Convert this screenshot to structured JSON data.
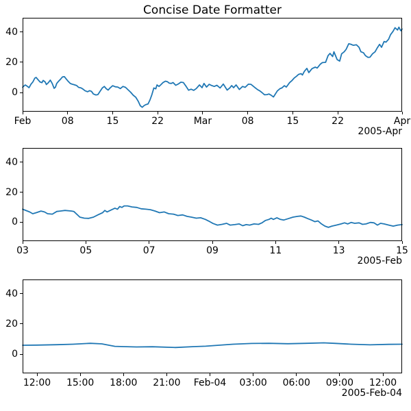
{
  "title": "Concise Date Formatter",
  "colors": {
    "line": "#1f77b4",
    "axes": "#000000",
    "text": "#000000",
    "background": "#ffffff"
  },
  "chart_data": [
    {
      "type": "line",
      "title": "",
      "xlabel": "",
      "ylabel": "",
      "x_unit": "days since 2005-02-01",
      "x_range": [
        0,
        59
      ],
      "ylim": [
        -12.7,
        49.5
      ],
      "grid": false,
      "legend": "none",
      "offset_label": "2005-Apr",
      "xticks": [
        {
          "pos": 0,
          "label": "Feb"
        },
        {
          "pos": 7,
          "label": "08"
        },
        {
          "pos": 14,
          "label": "15"
        },
        {
          "pos": 21,
          "label": "22"
        },
        {
          "pos": 28,
          "label": "Mar"
        },
        {
          "pos": 35,
          "label": "08"
        },
        {
          "pos": 42,
          "label": "15"
        },
        {
          "pos": 49,
          "label": "22"
        },
        {
          "pos": 59,
          "label": "Apr"
        }
      ],
      "yticks": [
        {
          "pos": 0,
          "label": "0"
        },
        {
          "pos": 20,
          "label": "20"
        },
        {
          "pos": 40,
          "label": "40"
        }
      ],
      "x": [
        0,
        0.4,
        0.7,
        1.0,
        1.3,
        1.6,
        1.9,
        2.1,
        2.4,
        2.7,
        3.0,
        3.2,
        3.5,
        3.7,
        4.0,
        4.3,
        4.6,
        4.9,
        5.1,
        5.3,
        5.6,
        5.9,
        6.2,
        6.5,
        6.8,
        7.1,
        7.4,
        7.7,
        8.0,
        8.4,
        8.7,
        9.1,
        9.4,
        9.7,
        10.1,
        10.4,
        10.7,
        11.0,
        11.4,
        11.7,
        12.0,
        12.4,
        12.7,
        13.0,
        13.3,
        13.6,
        14.0,
        14.4,
        14.8,
        15.2,
        15.6,
        16.0,
        16.4,
        16.8,
        17.2,
        17.6,
        18.0,
        18.3,
        18.6,
        18.9,
        19.2,
        19.5,
        19.8,
        20.1,
        20.4,
        20.7,
        20.9,
        21.2,
        21.5,
        21.8,
        22.2,
        22.5,
        22.8,
        23.1,
        23.4,
        23.8,
        24.2,
        24.6,
        25.0,
        25.4,
        25.8,
        26.2,
        26.6,
        27.0,
        27.5,
        27.9,
        28.2,
        28.6,
        29.0,
        29.4,
        29.8,
        30.2,
        30.7,
        31.2,
        31.8,
        32.2,
        32.5,
        32.8,
        33.2,
        33.7,
        34.2,
        34.6,
        35.1,
        35.5,
        36.2,
        36.5,
        36.9,
        37.2,
        37.6,
        38.0,
        38.3,
        38.7,
        39.0,
        39.6,
        40.0,
        40.3,
        40.7,
        41.0,
        41.5,
        41.9,
        42.2,
        42.6,
        42.9,
        43.3,
        43.5,
        43.8,
        44.2,
        44.5,
        45.0,
        45.5,
        45.8,
        46.3,
        46.6,
        47.1,
        47.5,
        47.8,
        48.2,
        48.4,
        48.9,
        49.3,
        49.6,
        50.0,
        50.3,
        50.7,
        51.0,
        51.4,
        51.9,
        52.3,
        52.6,
        53.0,
        53.3,
        53.7,
        54.0,
        54.4,
        54.8,
        55.1,
        55.5,
        55.8,
        56.2,
        56.5,
        56.9,
        57.2,
        57.6,
        57.9,
        58.3,
        58.5,
        58.8,
        59.0
      ],
      "y": [
        3.5,
        5.0,
        4.2,
        3.2,
        5.5,
        7.0,
        9.5,
        10.0,
        8.5,
        7.0,
        6.5,
        8.0,
        7.0,
        5.3,
        6.5,
        8.2,
        6.0,
        2.8,
        3.5,
        6.0,
        7.5,
        8.8,
        10.3,
        10.5,
        8.8,
        7.3,
        6.0,
        5.5,
        5.2,
        4.6,
        3.4,
        3.0,
        2.2,
        1.2,
        0.5,
        1.2,
        0.8,
        -1.0,
        -1.6,
        -1.4,
        0.5,
        3.0,
        4.0,
        2.5,
        1.6,
        3.0,
        4.5,
        3.8,
        3.6,
        2.6,
        4.0,
        3.4,
        1.8,
        0.2,
        -1.8,
        -3.2,
        -6.0,
        -8.8,
        -9.8,
        -8.6,
        -8.0,
        -7.6,
        -5.0,
        -1.5,
        3.0,
        2.4,
        5.0,
        4.0,
        5.2,
        6.5,
        7.5,
        7.2,
        6.2,
        6.0,
        6.6,
        4.8,
        5.6,
        6.8,
        6.6,
        4.2,
        1.5,
        2.2,
        1.4,
        2.6,
        5.0,
        3.2,
        6.0,
        3.6,
        5.4,
        4.6,
        4.0,
        4.8,
        3.0,
        5.6,
        1.6,
        3.0,
        4.6,
        3.2,
        5.0,
        2.0,
        4.0,
        3.4,
        5.5,
        5.4,
        3.0,
        2.0,
        1.0,
        0.0,
        -1.5,
        -1.4,
        -1.0,
        -2.0,
        -3.0,
        1.0,
        2.5,
        3.0,
        4.5,
        3.6,
        6.5,
        8.0,
        9.5,
        10.8,
        12.0,
        12.5,
        11.6,
        14.0,
        16.0,
        13.2,
        15.8,
        16.8,
        16.2,
        18.8,
        19.8,
        20.0,
        24.5,
        25.9,
        23.8,
        27.0,
        21.8,
        20.8,
        25.6,
        27.0,
        28.6,
        32.3,
        32.0,
        31.3,
        31.6,
        30.0,
        27.0,
        26.3,
        24.4,
        23.3,
        23.4,
        25.6,
        27.0,
        29.3,
        31.9,
        30.0,
        33.8,
        33.4,
        35.3,
        38.3,
        40.6,
        42.9,
        41.4,
        43.3,
        40.9,
        42.1
      ]
    },
    {
      "type": "line",
      "title": "",
      "xlabel": "",
      "ylabel": "",
      "x_unit": "days since 2005-02-03",
      "x_range": [
        0,
        12
      ],
      "ylim": [
        -12.7,
        49.5
      ],
      "grid": false,
      "legend": "none",
      "offset_label": "2005-Feb",
      "xticks": [
        {
          "pos": 0,
          "label": "03"
        },
        {
          "pos": 2,
          "label": "05"
        },
        {
          "pos": 4,
          "label": "07"
        },
        {
          "pos": 6,
          "label": "09"
        },
        {
          "pos": 8,
          "label": "11"
        },
        {
          "pos": 10,
          "label": "13"
        },
        {
          "pos": 12,
          "label": "15"
        }
      ],
      "yticks": [
        {
          "pos": 0,
          "label": "0"
        },
        {
          "pos": 20,
          "label": "20"
        },
        {
          "pos": 40,
          "label": "40"
        }
      ],
      "x": [
        0,
        0.22,
        0.32,
        0.43,
        0.58,
        0.69,
        0.79,
        0.94,
        1.08,
        1.19,
        1.34,
        1.55,
        1.62,
        1.81,
        1.95,
        2.09,
        2.24,
        2.38,
        2.53,
        2.6,
        2.67,
        2.82,
        2.92,
        3.0,
        3.07,
        3.14,
        3.21,
        3.32,
        3.46,
        3.61,
        3.75,
        3.9,
        4.04,
        4.19,
        4.33,
        4.48,
        4.62,
        4.77,
        4.91,
        5.06,
        5.2,
        5.34,
        5.49,
        5.63,
        5.78,
        5.92,
        6.02,
        6.16,
        6.31,
        6.45,
        6.56,
        6.71,
        6.85,
        6.96,
        7.07,
        7.18,
        7.32,
        7.46,
        7.57,
        7.68,
        7.79,
        7.86,
        7.93,
        8.04,
        8.15,
        8.26,
        8.4,
        8.55,
        8.69,
        8.8,
        8.91,
        9.02,
        9.13,
        9.24,
        9.34,
        9.45,
        9.56,
        9.67,
        9.78,
        9.92,
        10.07,
        10.18,
        10.28,
        10.39,
        10.5,
        10.64,
        10.75,
        10.86,
        11.0,
        11.11,
        11.22,
        11.32,
        11.43,
        11.58,
        11.72,
        11.86,
        12.0
      ],
      "y": [
        8.6,
        6.8,
        5.6,
        6.3,
        7.4,
        6.8,
        5.6,
        5.3,
        7.1,
        7.4,
        7.8,
        7.4,
        7.1,
        3.3,
        2.6,
        2.5,
        3.3,
        4.8,
        6.3,
        7.8,
        6.8,
        8.3,
        9.3,
        8.6,
        10.4,
        9.8,
        10.8,
        10.8,
        10.1,
        9.8,
        8.9,
        8.6,
        8.3,
        7.4,
        6.3,
        6.8,
        5.6,
        5.3,
        4.4,
        4.8,
        3.8,
        3.3,
        2.6,
        2.9,
        1.8,
        0.3,
        -0.9,
        -2.0,
        -1.5,
        -0.8,
        -2.0,
        -1.7,
        -1.2,
        -2.4,
        -1.7,
        -2.0,
        -1.2,
        -1.5,
        -0.5,
        1.1,
        1.8,
        2.6,
        1.8,
        2.9,
        1.8,
        1.4,
        2.3,
        3.3,
        3.8,
        4.1,
        3.3,
        2.3,
        1.4,
        0.3,
        0.8,
        -1.2,
        -2.7,
        -3.5,
        -2.7,
        -2.0,
        -1.2,
        -0.5,
        -1.2,
        -0.2,
        -0.8,
        -0.5,
        -1.5,
        -1.2,
        -0.2,
        -0.5,
        -2.0,
        -0.8,
        -1.2,
        -2.0,
        -2.7,
        -2.0,
        -1.7
      ]
    },
    {
      "type": "line",
      "title": "",
      "xlabel": "",
      "ylabel": "",
      "x_unit": "hours since 2005-02-03 11:00",
      "x_range": [
        0,
        26.33
      ],
      "ylim": [
        -12.7,
        49.5
      ],
      "grid": false,
      "legend": "none",
      "offset_label": "2005-Feb-04",
      "xticks": [
        {
          "pos": 1,
          "label": "12:00"
        },
        {
          "pos": 4,
          "label": "15:00"
        },
        {
          "pos": 7,
          "label": "18:00"
        },
        {
          "pos": 10,
          "label": "21:00"
        },
        {
          "pos": 13,
          "label": "Feb-04"
        },
        {
          "pos": 16,
          "label": "03:00"
        },
        {
          "pos": 19,
          "label": "06:00"
        },
        {
          "pos": 22,
          "label": "09:00"
        },
        {
          "pos": 25,
          "label": "12:00"
        }
      ],
      "yticks": [
        {
          "pos": 0,
          "label": "0"
        },
        {
          "pos": 20,
          "label": "20"
        },
        {
          "pos": 40,
          "label": "40"
        }
      ],
      "x": [
        0,
        1.0,
        2.4,
        3.5,
        4.7,
        5.5,
        6.4,
        7.0,
        7.9,
        9.0,
        10.6,
        11.9,
        12.7,
        13.6,
        14.6,
        15.9,
        17.1,
        18.4,
        19.7,
        20.9,
        21.6,
        22.8,
        24.1,
        25.4,
        26.33
      ],
      "y": [
        5.9,
        6.0,
        6.3,
        6.6,
        7.2,
        6.8,
        5.2,
        5.0,
        4.8,
        4.9,
        4.4,
        5.0,
        5.3,
        5.9,
        6.6,
        7.1,
        7.2,
        6.9,
        7.2,
        7.5,
        7.2,
        6.6,
        6.2,
        6.5,
        6.6
      ]
    }
  ]
}
